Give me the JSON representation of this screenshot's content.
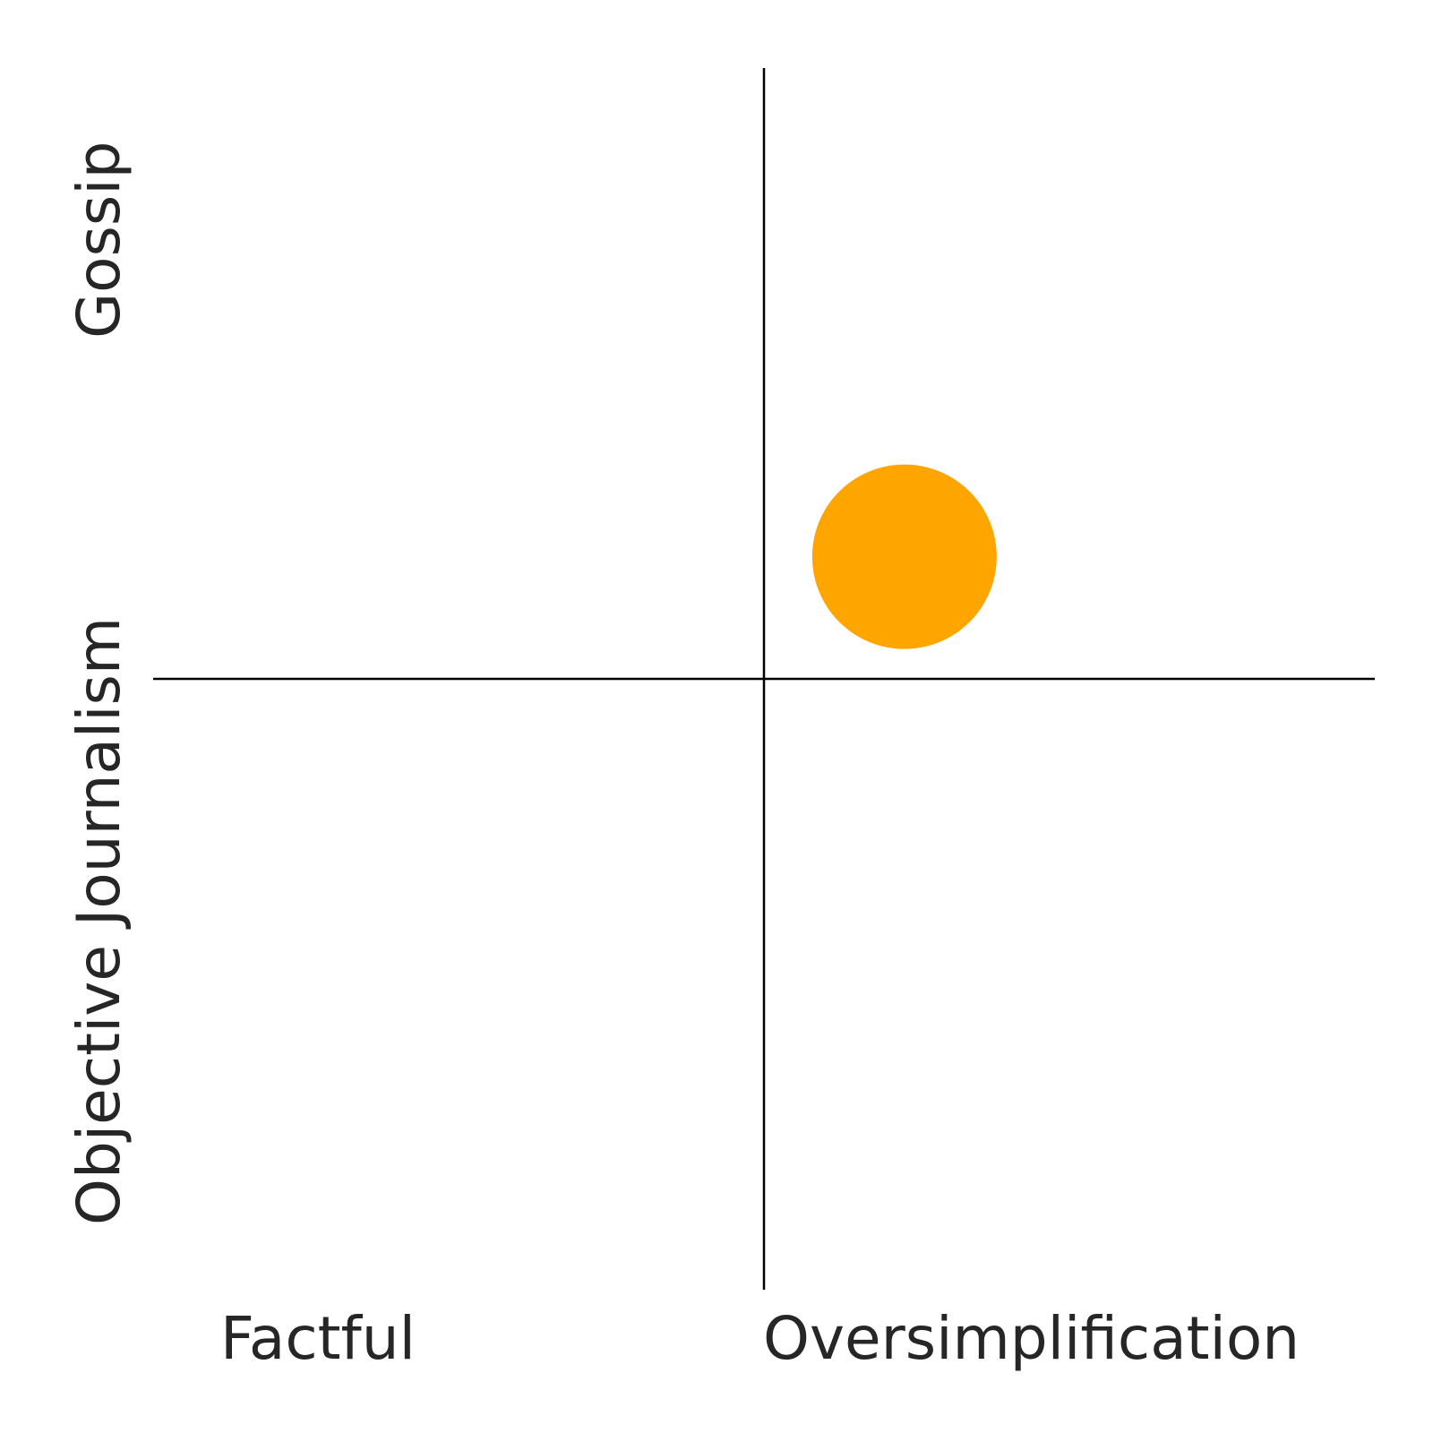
{
  "chart_data": {
    "type": "scatter",
    "title": "",
    "quadrant_labels": {
      "x_left": "Factful",
      "x_right": "Oversimplification",
      "y_bottom": "Objective Journalism",
      "y_top": "Gossip"
    },
    "xlim": [
      -1,
      1
    ],
    "ylim": [
      -1,
      1
    ],
    "grid": false,
    "legend": "none",
    "points": [
      {
        "x": 0.23,
        "y": 0.2,
        "color": "#FFA500"
      }
    ]
  }
}
